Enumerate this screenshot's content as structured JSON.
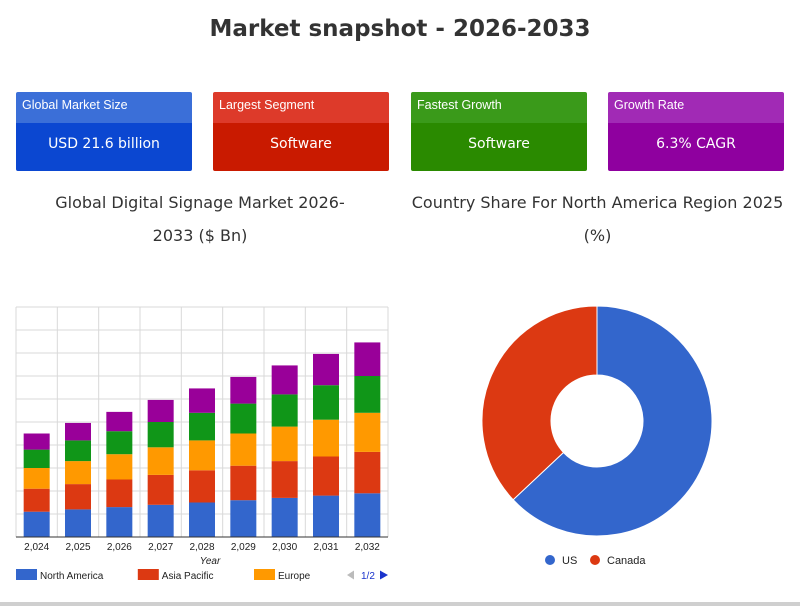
{
  "page": {
    "title": "Market snapshot - 2026-2033"
  },
  "cards": [
    {
      "label": "Global Market Size",
      "value": "USD 21.6 billion",
      "header_color": "#3b6fd8",
      "body_color": "#0b47d1"
    },
    {
      "label": "Largest Segment",
      "value": "Software",
      "header_color": "#dd3a2a",
      "body_color": "#c91a00"
    },
    {
      "label": "Fastest Growth",
      "value": "Software",
      "header_color": "#3a9a1a",
      "body_color": "#2a8a00"
    },
    {
      "label": "Growth Rate",
      "value": "6.3% CAGR",
      "header_color": "#a12ab5",
      "body_color": "#8f009f"
    }
  ],
  "chart_data": [
    {
      "type": "bar",
      "stacked": true,
      "title": "Global Digital Signage Market 2026-2033 ($ Bn)",
      "xlabel": "Year",
      "categories": [
        "2,024",
        "2,025",
        "2,026",
        "2,027",
        "2,028",
        "2,029",
        "2,030",
        "2,031",
        "2,032"
      ],
      "series": [
        {
          "name": "North America",
          "color": "#3366cc",
          "values": [
            5.5,
            6.0,
            6.5,
            7.0,
            7.5,
            8.0,
            8.5,
            9.0,
            9.5
          ]
        },
        {
          "name": "Asia Pacific",
          "color": "#dc3912",
          "values": [
            5.0,
            5.5,
            6.0,
            6.5,
            7.0,
            7.5,
            8.0,
            8.5,
            9.0
          ]
        },
        {
          "name": "Europe",
          "color": "#ff9900",
          "values": [
            4.5,
            5.0,
            5.5,
            6.0,
            6.5,
            7.0,
            7.5,
            8.0,
            8.5
          ]
        },
        {
          "name": "",
          "color": "#109618",
          "values": [
            4.0,
            4.5,
            5.0,
            5.5,
            6.0,
            6.5,
            7.0,
            7.5,
            8.0
          ]
        },
        {
          "name": "",
          "color": "#990099",
          "values": [
            3.5,
            3.8,
            4.2,
            4.8,
            5.3,
            5.8,
            6.3,
            6.8,
            7.3
          ]
        }
      ],
      "ylim": [
        0,
        50
      ],
      "grid": true,
      "legend": {
        "position": "bottom",
        "page_indicator": "1/2"
      }
    },
    {
      "type": "pie",
      "donut": true,
      "title": "Country Share For North America Region 2025 (%)",
      "labels": [
        "US",
        "Canada"
      ],
      "values": [
        63,
        37
      ],
      "colors": [
        "#3366cc",
        "#dc3912"
      ],
      "legend": "bottom"
    }
  ]
}
